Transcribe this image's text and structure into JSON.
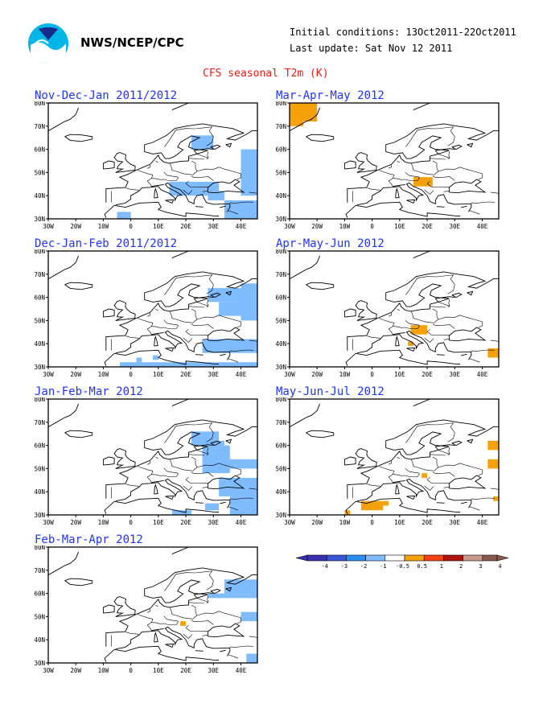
{
  "header": {
    "org": "NWS/NCEP/CPC",
    "initial_conditions": "Initial conditions: 13Oct2011-22Oct2011",
    "last_update": "Last update: Sat Nov 12 2011",
    "title": "CFS seasonal T2m (K)"
  },
  "axes": {
    "lon_labels": [
      "30W",
      "20W",
      "10W",
      "0",
      "10E",
      "20E",
      "30E",
      "40E"
    ],
    "lat_labels": [
      "80N",
      "70N",
      "60N",
      "50N",
      "40N",
      "30N"
    ]
  },
  "panels": [
    {
      "title": "Nov-Dec-Jan 2011/2012",
      "anomalies": [
        {
          "color": "#7fbcff",
          "cells": [
            [
              22,
              66,
              30,
              60
            ],
            [
              40,
              60,
              46,
              40
            ],
            [
              14,
              46,
              32,
              40
            ],
            [
              28,
              42,
              34,
              38
            ],
            [
              34,
              38,
              46,
              30
            ],
            [
              -5,
              33,
              0,
              30
            ]
          ]
        }
      ]
    },
    {
      "title": "Mar-Apr-May 2012",
      "anomalies": [
        {
          "color": "#f5a10a",
          "cells": [
            [
              -30,
              80,
              -20,
              72
            ],
            [
              -30,
              72,
              -25,
              70
            ],
            [
              15,
              48,
              22,
              44
            ]
          ]
        }
      ]
    },
    {
      "title": "Dec-Jan-Feb 2011/2012",
      "anomalies": [
        {
          "color": "#7fbcff",
          "cells": [
            [
              40,
              66,
              46,
              50
            ],
            [
              28,
              64,
              40,
              58
            ],
            [
              32,
              58,
              40,
              52
            ],
            [
              26,
              42,
              46,
              36
            ],
            [
              -4,
              32,
              46,
              30
            ],
            [
              2,
              34,
              4,
              32
            ],
            [
              8,
              35,
              10,
              33
            ]
          ]
        }
      ]
    },
    {
      "title": "Apr-May-Jun 2012",
      "anomalies": [
        {
          "color": "#f5a10a",
          "cells": [
            [
              14,
              48,
              20,
              44
            ],
            [
              42,
              38,
              46,
              34
            ],
            [
              13,
              41,
              15,
              39
            ]
          ]
        }
      ]
    },
    {
      "title": "Jan-Feb-Mar 2012",
      "anomalies": [
        {
          "color": "#7fbcff",
          "cells": [
            [
              22,
              66,
              32,
              60
            ],
            [
              26,
              60,
              36,
              48
            ],
            [
              34,
              54,
              46,
              50
            ],
            [
              32,
              46,
              46,
              38
            ],
            [
              36,
              38,
              46,
              30
            ],
            [
              15,
              32,
              22,
              30
            ],
            [
              27,
              35,
              32,
              32
            ],
            [
              30,
              62,
              34,
              60
            ]
          ]
        }
      ]
    },
    {
      "title": "May-Jun-Jul 2012",
      "anomalies": [
        {
          "color": "#f5a10a",
          "cells": [
            [
              42,
              62,
              46,
              58
            ],
            [
              42,
              54,
              46,
              50
            ],
            [
              -4,
              36,
              4,
              32
            ],
            [
              -10,
              32,
              -8,
              30
            ],
            [
              4,
              36,
              6,
              34
            ],
            [
              18,
              48,
              20,
              46
            ],
            [
              44,
              38,
              46,
              36
            ]
          ]
        }
      ]
    },
    {
      "title": "Feb-Mar-Apr 2012",
      "anomalies": [
        {
          "color": "#7fbcff",
          "cells": [
            [
              34,
              66,
              46,
              58
            ],
            [
              28,
              60,
              34,
              58
            ],
            [
              40,
              52,
              46,
              48
            ],
            [
              42,
              34,
              46,
              30
            ]
          ]
        },
        {
          "color": "#f5a10a",
          "cells": [
            [
              18,
              48,
              20,
              46
            ]
          ]
        }
      ]
    }
  ],
  "legend": {
    "labels": [
      "-4",
      "-3",
      "-2",
      "-1",
      "-0.5",
      "0.5",
      "1",
      "2",
      "3",
      "4"
    ],
    "colors": [
      "#3a2fb0",
      "#3a55d8",
      "#2a8ff0",
      "#7fbcff",
      "#ffffff",
      "#f5a10a",
      "#f54214",
      "#b0120c",
      "#c9998e",
      "#8b5a4e"
    ]
  }
}
